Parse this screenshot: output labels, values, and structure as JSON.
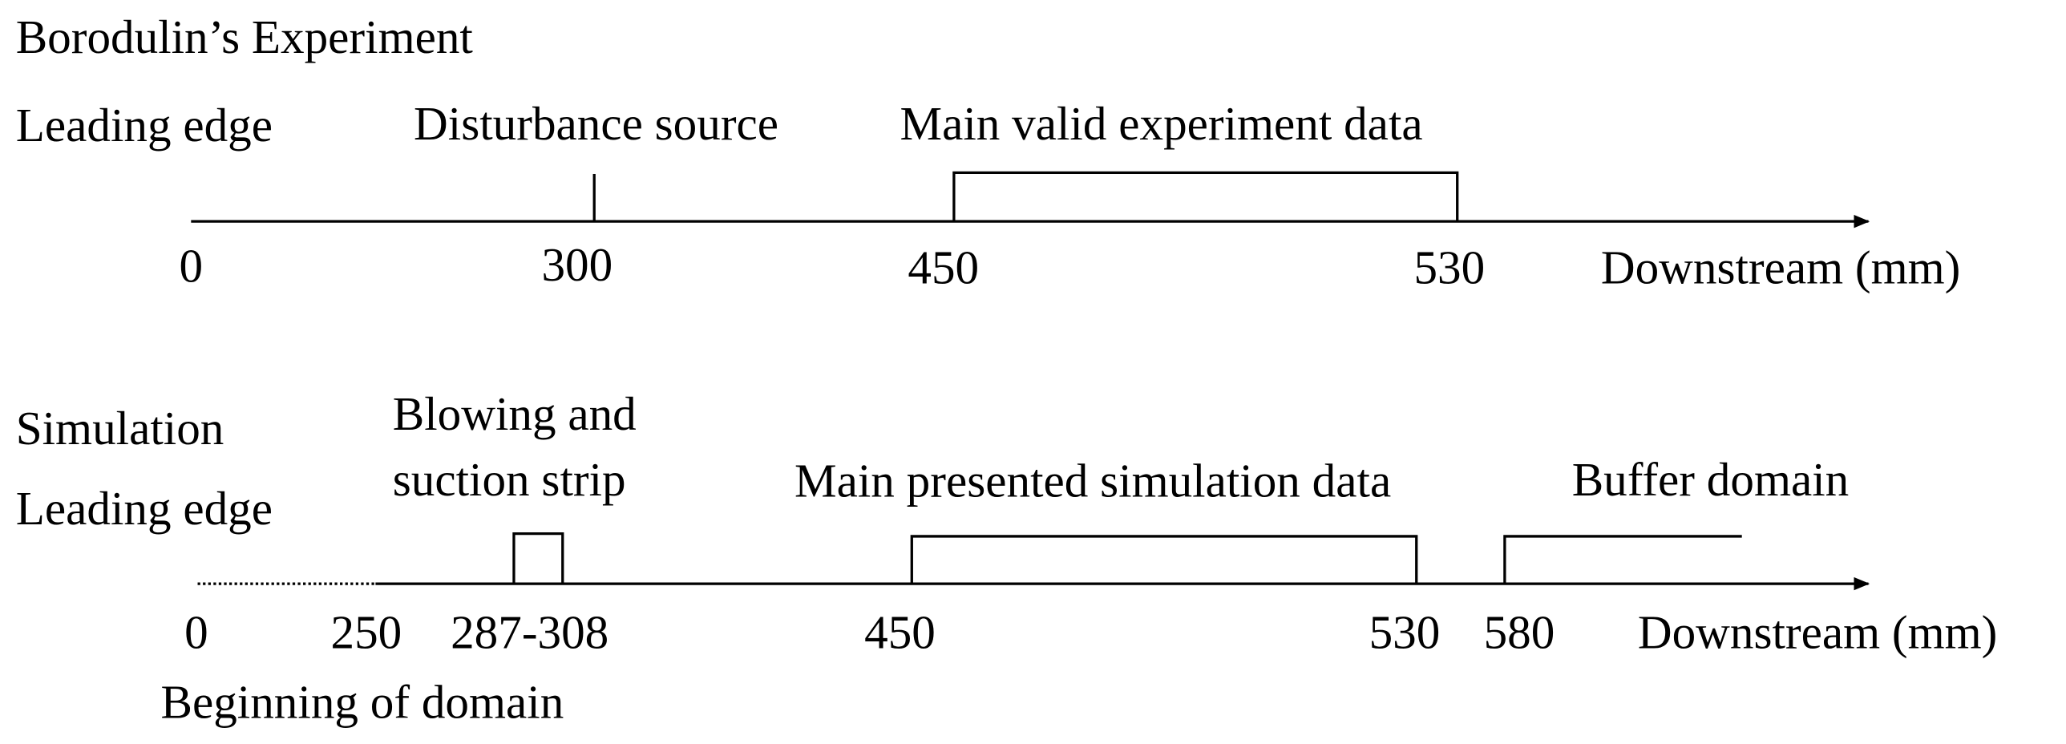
{
  "top": {
    "title": "Borodulin’s Experiment",
    "annotations": [
      "Leading edge",
      "Disturbance source",
      "Main valid experiment data"
    ],
    "ticks": [
      "0",
      "300",
      "450",
      "530"
    ],
    "axis_label": "Downstream (mm)"
  },
  "bottom": {
    "title": "Simulation",
    "annotations": [
      "Leading edge",
      "Blowing and",
      "suction strip",
      "Main presented simulation data",
      "Buffer domain"
    ],
    "ticks": [
      "0",
      "250",
      "287-308",
      "450",
      "530",
      "580"
    ],
    "axis_label": "Downstream (mm)",
    "note": "Beginning of domain"
  }
}
